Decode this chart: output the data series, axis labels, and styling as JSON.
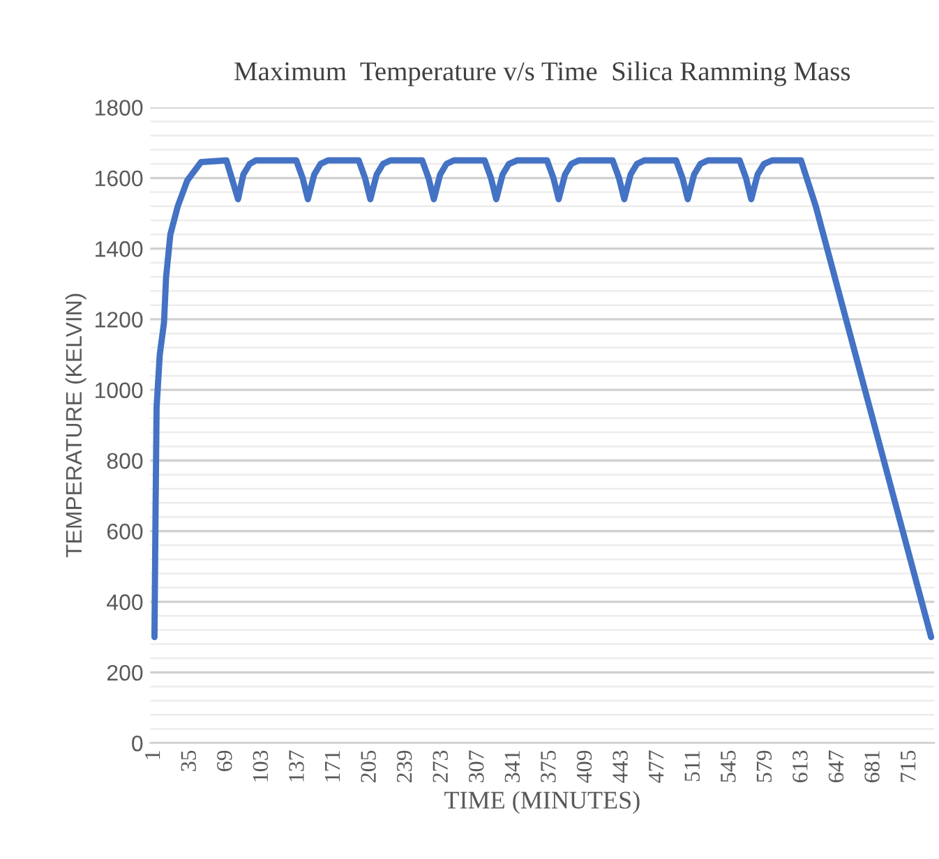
{
  "chart_data": {
    "type": "line",
    "title": "Maximum  Temperature v/s Time  Silica Ramming Mass",
    "xlabel": "TIME (MINUTES)",
    "ylabel": "TEMPERATURE (KELVIN)",
    "x": [
      1,
      2,
      3,
      6,
      10,
      12,
      16,
      23,
      32,
      45,
      69,
      74,
      80,
      85,
      91,
      97,
      104,
      135,
      141,
      146,
      152,
      158,
      165,
      194,
      200,
      205,
      211,
      217,
      224,
      254,
      260,
      265,
      271,
      277,
      284,
      313,
      319,
      324,
      330,
      336,
      344,
      372,
      378,
      383,
      389,
      395,
      402,
      434,
      440,
      445,
      451,
      457,
      464,
      494,
      500,
      505,
      511,
      517,
      524,
      554,
      560,
      565,
      571,
      577,
      585,
      612,
      626,
      698,
      735
    ],
    "series": [
      {
        "color": "#4472c4",
        "line_style": "solid",
        "marker": "none",
        "values": [
          300,
          650,
          950,
          1100,
          1190,
          1320,
          1440,
          1520,
          1593,
          1645,
          1650,
          1600,
          1540,
          1610,
          1640,
          1650,
          1650,
          1650,
          1600,
          1540,
          1610,
          1640,
          1650,
          1650,
          1600,
          1540,
          1610,
          1640,
          1650,
          1650,
          1600,
          1540,
          1610,
          1640,
          1650,
          1650,
          1600,
          1540,
          1610,
          1640,
          1650,
          1650,
          1600,
          1540,
          1610,
          1640,
          1650,
          1650,
          1600,
          1540,
          1610,
          1640,
          1650,
          1650,
          1600,
          1540,
          1610,
          1640,
          1650,
          1650,
          1600,
          1540,
          1610,
          1640,
          1650,
          1650,
          1520,
          714,
          300
        ]
      }
    ],
    "xlim": [
      -3,
      738
    ],
    "xticks": [
      1,
      35,
      69,
      103,
      137,
      171,
      205,
      239,
      273,
      307,
      341,
      375,
      409,
      443,
      477,
      511,
      545,
      579,
      613,
      647,
      681,
      715
    ],
    "ylim": [
      0,
      1800
    ],
    "yticks": [
      0,
      {
        "value": 40,
        "label": null
      },
      {
        "value": 80,
        "label": null
      },
      {
        "value": 120,
        "label": null
      },
      {
        "value": 160,
        "label": null
      },
      200,
      {
        "value": 240,
        "label": null
      },
      {
        "value": 280,
        "label": null
      },
      {
        "value": 320,
        "label": null
      },
      {
        "value": 360,
        "label": null
      },
      400,
      {
        "value": 440,
        "label": null
      },
      {
        "value": 480,
        "label": null
      },
      {
        "value": 520,
        "label": null
      },
      {
        "value": 560,
        "label": null
      },
      600,
      {
        "value": 640,
        "label": null
      },
      {
        "value": 680,
        "label": null
      },
      {
        "value": 720,
        "label": null
      },
      {
        "value": 760,
        "label": null
      },
      800,
      {
        "value": 840,
        "label": null
      },
      {
        "value": 880,
        "label": null
      },
      {
        "value": 920,
        "label": null
      },
      {
        "value": 960,
        "label": null
      },
      1000,
      {
        "value": 1040,
        "label": null
      },
      {
        "value": 1080,
        "label": null
      },
      {
        "value": 1120,
        "label": null
      },
      {
        "value": 1160,
        "label": null
      },
      1200,
      {
        "value": 1240,
        "label": null
      },
      {
        "value": 1280,
        "label": null
      },
      {
        "value": 1320,
        "label": null
      },
      {
        "value": 1360,
        "label": null
      },
      1400,
      {
        "value": 1440,
        "label": null
      },
      {
        "value": 1480,
        "label": null
      },
      {
        "value": 1520,
        "label": null
      },
      {
        "value": 1560,
        "label": null
      },
      1600,
      {
        "value": 1640,
        "label": null
      },
      {
        "value": 1680,
        "label": null
      },
      {
        "value": 1720,
        "label": null
      },
      {
        "value": 1760,
        "label": null
      },
      1800
    ],
    "grid": "y",
    "legend": false
  }
}
